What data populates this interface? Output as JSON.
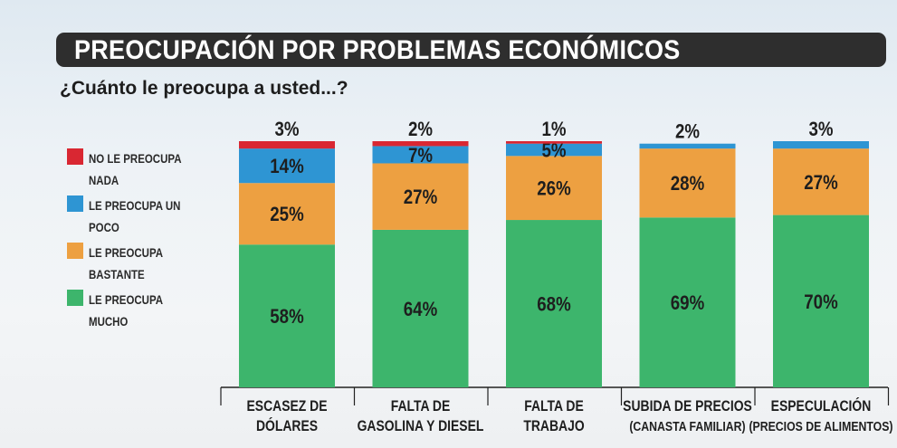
{
  "title": "PREOCUPACIÓN POR PROBLEMAS ECONÓMICOS",
  "subtitle": "¿Cuánto le preocupa a usted...?",
  "legend": [
    {
      "label": "NO LE PREOCUPA NADA",
      "color": "#d92732"
    },
    {
      "label": "LE PREOCUPA UN POCO",
      "color": "#2e95d3"
    },
    {
      "label": "LE PREOCUPA BASTANTE",
      "color": "#eda041"
    },
    {
      "label": "LE PREOCUPA MUCHO",
      "color": "#3db56c"
    }
  ],
  "chart_data": {
    "type": "bar",
    "stacked": true,
    "title": "PREOCUPACIÓN POR PROBLEMAS ECONÓMICOS",
    "subtitle": "¿Cuánto le preocupa a usted...?",
    "categories": [
      [
        "ESCASEZ DE",
        "DÓLARES"
      ],
      [
        "FALTA DE",
        "GASOLINA Y DIESEL"
      ],
      [
        "FALTA DE",
        "TRABAJO"
      ],
      [
        "SUBIDA DE PRECIOS",
        "(CANASTA FAMILIAR)"
      ],
      [
        "ESPECULACIÓN",
        "(PRECIOS DE ALIMENTOS)"
      ]
    ],
    "series": [
      {
        "name": "LE PREOCUPA MUCHO",
        "color": "#3db56c",
        "values": [
          58,
          64,
          68,
          69,
          70
        ],
        "labels": [
          "58%",
          "64%",
          "68%",
          "69%",
          "70%"
        ]
      },
      {
        "name": "LE PREOCUPA BASTANTE",
        "color": "#eda041",
        "values": [
          25,
          27,
          26,
          28,
          27
        ],
        "labels": [
          "25%",
          "27%",
          "26%",
          "28%",
          "27%"
        ]
      },
      {
        "name": "LE PREOCUPA UN POCO",
        "color": "#2e95d3",
        "values": [
          14,
          7,
          5,
          2,
          3
        ],
        "labels": [
          "14%",
          "7%",
          "5%",
          "",
          ""
        ]
      },
      {
        "name": "NO LE PREOCUPA NADA",
        "color": "#d92732",
        "values": [
          3,
          2,
          1,
          0,
          0
        ],
        "labels": [
          "",
          "",
          "",
          "",
          ""
        ]
      }
    ],
    "top_labels": [
      "3%",
      "2%",
      "1%",
      "2%",
      "3%"
    ],
    "ylim": [
      0,
      100
    ],
    "legend_position": "left",
    "grid": false
  }
}
